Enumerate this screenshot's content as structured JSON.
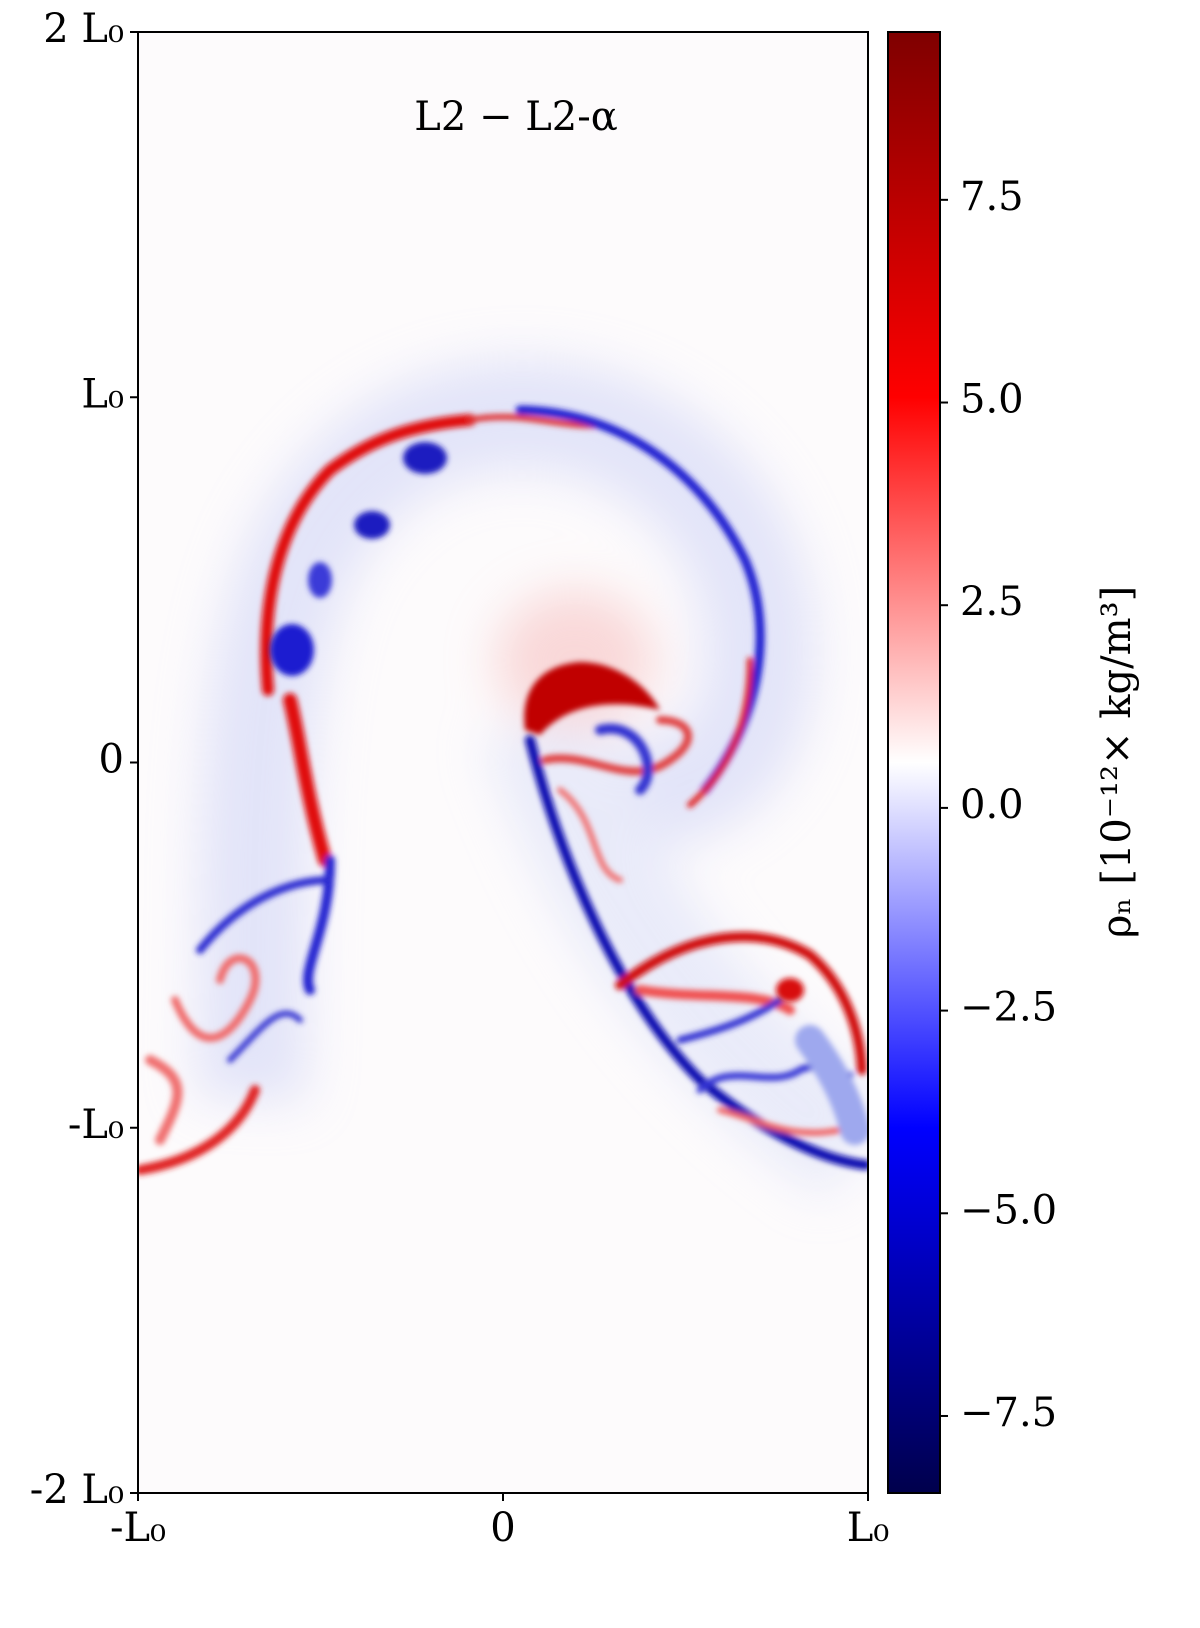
{
  "chart_data": {
    "type": "heatmap",
    "title": "L2 − L2-α",
    "xlim": [
      -1,
      1
    ],
    "xticks": [
      {
        "value": -1,
        "label": "-L₀"
      },
      0,
      {
        "value": 1,
        "label": "L₀"
      }
    ],
    "ylim": [
      -2,
      2
    ],
    "yticks": [
      {
        "value": -2,
        "label": "-2 L₀"
      },
      {
        "value": -1,
        "label": "-L₀"
      },
      0,
      {
        "value": 1,
        "label": "L₀"
      },
      {
        "value": 2,
        "label": "2 L₀"
      }
    ],
    "colormap": "seismic",
    "colorbar_label": "ρₙ [10⁻¹²× kg/m³]",
    "clim": [
      -8.45,
      9.57
    ],
    "colorbar_ticks": [
      {
        "value": -7.5,
        "label": "−7.5"
      },
      {
        "value": -5,
        "label": "−5.0"
      },
      {
        "value": -2.5,
        "label": "−2.5"
      },
      {
        "value": 0,
        "label": "0.0"
      },
      2.5,
      {
        "value": 5,
        "label": "5.0"
      },
      7.5
    ]
  }
}
